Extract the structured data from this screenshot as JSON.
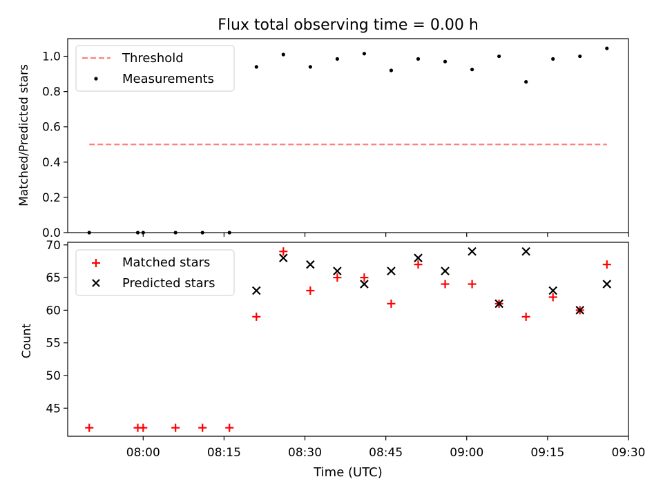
{
  "chart_data": [
    {
      "type": "scatter",
      "title": "Flux total observing time = 0.00 h",
      "xlabel": "",
      "ylabel": "Matched/Predicted stars",
      "xlim": [
        "07:46",
        "09:30"
      ],
      "ylim": [
        0.0,
        1.1
      ],
      "yticks": [
        0.0,
        0.2,
        0.4,
        0.6,
        0.8,
        1.0
      ],
      "ytick_labels": [
        "0.0",
        "0.2",
        "0.4",
        "0.6",
        "0.8",
        "1.0"
      ],
      "legend": {
        "placement": "upper-left",
        "entries": [
          "Threshold",
          "Measurements"
        ]
      },
      "series": [
        {
          "name": "Threshold",
          "kind": "dashed-line",
          "color": "#ff7f7f",
          "x": [
            "07:50",
            "09:26"
          ],
          "y": [
            0.5,
            0.5
          ]
        },
        {
          "name": "Measurements",
          "kind": "dot",
          "color": "#000000",
          "x": [
            "07:50",
            "07:59",
            "08:00",
            "08:06",
            "08:11",
            "08:16",
            "08:21",
            "08:26",
            "08:31",
            "08:36",
            "08:41",
            "08:46",
            "08:51",
            "08:56",
            "09:01",
            "09:06",
            "09:11",
            "09:16",
            "09:21",
            "09:26"
          ],
          "y": [
            0.0,
            0.0,
            0.0,
            0.0,
            0.0,
            0.0,
            0.94,
            1.01,
            0.94,
            0.985,
            1.015,
            0.92,
            0.985,
            0.97,
            0.925,
            1.0,
            0.855,
            0.985,
            1.0,
            1.045
          ]
        }
      ]
    },
    {
      "type": "scatter",
      "title": "",
      "xlabel": "Time (UTC)",
      "ylabel": "Count",
      "xlim": [
        "07:46",
        "09:30"
      ],
      "ylim": [
        40.7,
        70.4
      ],
      "yticks": [
        45,
        50,
        55,
        60,
        65,
        70
      ],
      "ytick_labels": [
        "45",
        "50",
        "55",
        "60",
        "65",
        "70"
      ],
      "xticks": [
        "08:00",
        "08:15",
        "08:30",
        "08:45",
        "09:00",
        "09:15",
        "09:30"
      ],
      "legend": {
        "placement": "upper-left",
        "entries": [
          "Matched stars",
          "Predicted stars"
        ]
      },
      "series": [
        {
          "name": "Matched stars",
          "kind": "plus",
          "color": "#ff0000",
          "x": [
            "07:50",
            "07:59",
            "08:00",
            "08:06",
            "08:11",
            "08:16",
            "08:21",
            "08:26",
            "08:31",
            "08:36",
            "08:41",
            "08:46",
            "08:51",
            "08:56",
            "09:01",
            "09:06",
            "09:11",
            "09:16",
            "09:21",
            "09:26"
          ],
          "y": [
            42,
            42,
            42,
            42,
            42,
            42,
            59,
            69,
            63,
            65,
            65,
            61,
            67,
            64,
            64,
            61,
            59,
            62,
            60,
            67
          ]
        },
        {
          "name": "Predicted stars",
          "kind": "cross",
          "color": "#000000",
          "x": [
            "08:21",
            "08:26",
            "08:31",
            "08:36",
            "08:41",
            "08:46",
            "08:51",
            "08:56",
            "09:01",
            "09:06",
            "09:11",
            "09:16",
            "09:21",
            "09:26"
          ],
          "y": [
            63,
            68,
            67,
            66,
            64,
            66,
            68,
            66,
            69,
            61,
            69,
            63,
            60,
            64
          ]
        }
      ]
    }
  ]
}
